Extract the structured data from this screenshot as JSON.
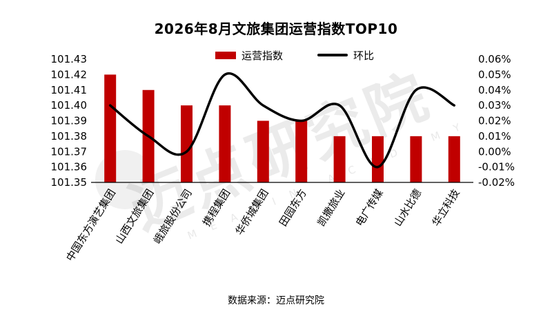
{
  "title": "2026年8月文旅集团运营指数TOP10",
  "source": "数据来源：迈点研究院",
  "watermark": {
    "text": "迈点研究院",
    "subtext": "MEADIN ACADEMY"
  },
  "legend": {
    "bar_label": "运营指数",
    "line_label": "环比"
  },
  "colors": {
    "bar": "#C00000",
    "line": "#000000"
  },
  "chart_data": {
    "type": "bar",
    "categories": [
      "中国东方演艺集团",
      "山西文旅集团",
      "峨旅股份公司",
      "携程集团",
      "华侨城集团",
      "田园东方",
      "凯撒旅业",
      "电广传媒",
      "山水比德",
      "华立科技"
    ],
    "series": [
      {
        "name": "运营指数",
        "type": "bar",
        "axis": "left",
        "values": [
          101.42,
          101.41,
          101.4,
          101.4,
          101.39,
          101.39,
          101.38,
          101.38,
          101.38,
          101.38
        ]
      },
      {
        "name": "环比",
        "type": "line",
        "axis": "right",
        "values": [
          0.03,
          0.01,
          0.0,
          0.05,
          0.03,
          0.02,
          0.03,
          -0.01,
          0.04,
          0.03
        ]
      }
    ],
    "left_axis": {
      "ylim": [
        101.35,
        101.43
      ],
      "ticks": [
        "101.35",
        "101.36",
        "101.37",
        "101.38",
        "101.39",
        "101.40",
        "101.41",
        "101.42",
        "101.43"
      ]
    },
    "right_axis": {
      "ylim": [
        -0.02,
        0.06
      ],
      "ticks": [
        "-0.02%",
        "-0.01%",
        "0.00%",
        "0.01%",
        "0.02%",
        "0.03%",
        "0.04%",
        "0.05%",
        "0.06%"
      ]
    },
    "grid": false,
    "legend_position": "top"
  }
}
